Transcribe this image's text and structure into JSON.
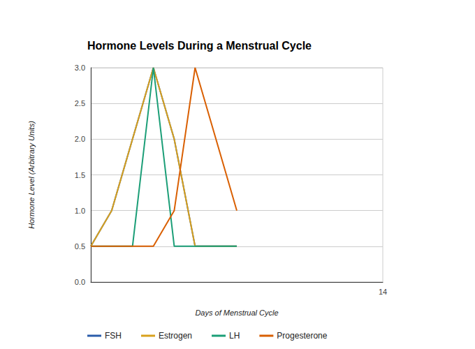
{
  "chart_data": {
    "type": "line",
    "title": "Hormone Levels During a Menstrual Cycle",
    "x_label": "Days of Menstrual Cycle",
    "y_label": "Hormone Level (Arbitrary Units)",
    "x": [
      0,
      1,
      2,
      3,
      4,
      5,
      6,
      7
    ],
    "series": [
      {
        "name": "FSH",
        "color": "#2a5caa",
        "values": [
          0.5,
          1,
          2,
          3,
          2,
          0.5,
          0.5,
          0.5
        ]
      },
      {
        "name": "Estrogen",
        "color": "#d9a11c",
        "values": [
          0.5,
          1,
          2,
          3,
          2,
          0.5,
          0.5,
          0.5
        ]
      },
      {
        "name": "LH",
        "color": "#1b9e77",
        "values": [
          0.5,
          0.5,
          0.5,
          3,
          0.5,
          0.5,
          0.5,
          0.5
        ]
      },
      {
        "name": "Progesterone",
        "color": "#d95f02",
        "values": [
          0.5,
          0.5,
          0.5,
          0.5,
          1,
          3,
          2,
          1
        ]
      }
    ],
    "xlim": [
      0,
      14
    ],
    "xticks": [
      14
    ],
    "ylim": [
      0,
      3
    ],
    "yticks": [
      {
        "value": 0,
        "label": "0.0"
      },
      {
        "value": 0.5,
        "label": "0.5"
      },
      {
        "value": 1,
        "label": "1.0"
      },
      {
        "value": 1.5,
        "label": "1.5"
      },
      {
        "value": 2,
        "label": "2.0"
      },
      {
        "value": 2.5,
        "label": "2.5"
      },
      {
        "value": 3,
        "label": "3.0"
      }
    ],
    "grid": true,
    "legend": "bottom"
  }
}
